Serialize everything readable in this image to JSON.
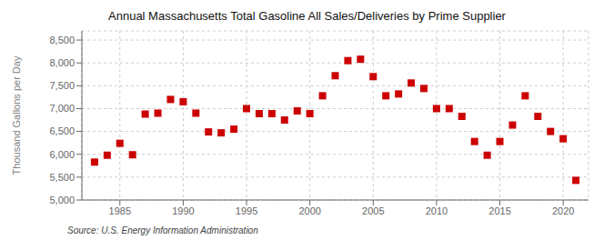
{
  "chart_data": {
    "type": "scatter",
    "title": "Annual Massachusetts Total Gasoline All Sales/Deliveries by Prime Supplier",
    "ylabel": "Thousand Gallons per Day",
    "annotation": "Source: U.S. Energy Information Administration",
    "x": [
      1983,
      1984,
      1985,
      1986,
      1987,
      1988,
      1989,
      1990,
      1991,
      1992,
      1993,
      1994,
      1995,
      1996,
      1997,
      1998,
      1999,
      2000,
      2001,
      2002,
      2003,
      2004,
      2005,
      2006,
      2007,
      2008,
      2009,
      2010,
      2011,
      2012,
      2013,
      2014,
      2015,
      2016,
      2017,
      2018,
      2019,
      2020,
      2021
    ],
    "values": [
      5830,
      5980,
      6240,
      5990,
      6880,
      6900,
      7200,
      7150,
      6900,
      6490,
      6470,
      6550,
      7000,
      6890,
      6890,
      6750,
      6950,
      6890,
      7280,
      7720,
      8050,
      8080,
      7700,
      7280,
      7320,
      7560,
      7440,
      7000,
      7000,
      6830,
      6280,
      5980,
      6280,
      6640,
      7280,
      6830,
      6500,
      6340,
      5430
    ],
    "color": "#cc0000",
    "marker": "square",
    "xlim": [
      1982,
      2022
    ],
    "xticks": [
      1985,
      1990,
      1995,
      2000,
      2005,
      2010,
      2015,
      2020
    ],
    "ylim": [
      5000,
      8700
    ],
    "yticks": [
      {
        "value": 5000,
        "label": "5,000"
      },
      {
        "value": 5500,
        "label": "5,500"
      },
      {
        "value": 6000,
        "label": "6,000"
      },
      {
        "value": 6500,
        "label": "6,500"
      },
      {
        "value": 7000,
        "label": "7,000"
      },
      {
        "value": 7500,
        "label": "7,500"
      },
      {
        "value": 8000,
        "label": "8,000"
      },
      {
        "value": 8500,
        "label": "8,500"
      }
    ],
    "grid": true
  }
}
